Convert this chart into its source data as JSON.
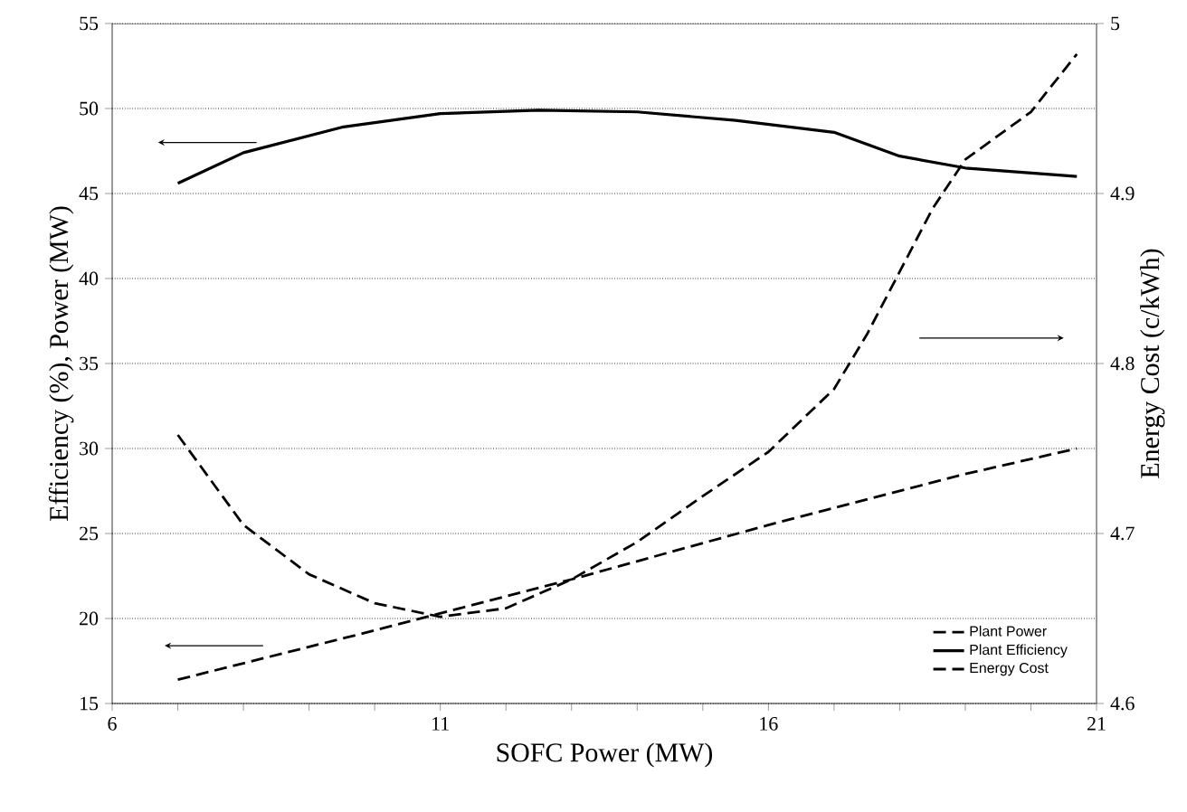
{
  "chart_data": {
    "type": "line",
    "xlabel": "SOFC Power (MW)",
    "ylabel": "Efficiency (%), Power (MW)",
    "y2label": "Energy Cost (c/kWh)",
    "xlim": [
      6,
      21
    ],
    "xticks": [
      6,
      11,
      16,
      21
    ],
    "ylim": [
      15,
      55
    ],
    "yticks": [
      15,
      20,
      25,
      30,
      35,
      40,
      45,
      50,
      55
    ],
    "y2lim": [
      4.6,
      5
    ],
    "y2ticks": [
      4.6,
      4.7,
      4.8,
      4.9,
      5
    ],
    "grid": "y",
    "legend": "bottom right",
    "marker": "none",
    "series": [
      {
        "name": "Plant Power",
        "color": "#000000",
        "line_style": "dashed",
        "x": [
          7,
          10,
          13,
          16,
          19,
          20.7
        ],
        "values": [
          16.4,
          19.3,
          22.3,
          25.5,
          28.5,
          30
        ]
      },
      {
        "name": "Plant Efficiency",
        "color": "#000000",
        "line_style": "solid",
        "x": [
          7,
          8,
          9.5,
          11,
          12.5,
          14,
          15.5,
          17,
          18,
          19,
          20.7
        ],
        "values": [
          45.6,
          47.4,
          48.9,
          49.7,
          49.9,
          49.8,
          49.3,
          48.6,
          47.2,
          46.5,
          46.0
        ]
      },
      {
        "name": "Energy Cost",
        "color": "#000000",
        "line_style": "dashed",
        "axis": "y2",
        "x": [
          7,
          8,
          9,
          10,
          11,
          12,
          13,
          14,
          15,
          16,
          17,
          17.5,
          18,
          18.5,
          19,
          20,
          20.7
        ],
        "values": [
          4.758,
          4.705,
          4.676,
          4.659,
          4.651,
          4.656,
          4.673,
          4.695,
          4.722,
          4.748,
          4.785,
          4.817,
          4.854,
          4.891,
          4.92,
          4.948,
          4.982
        ]
      }
    ]
  }
}
